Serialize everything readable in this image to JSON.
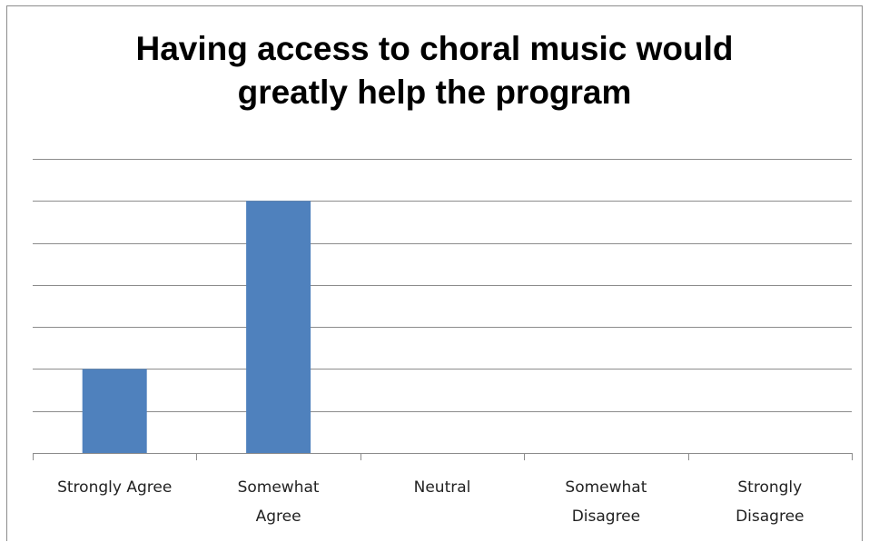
{
  "chart_data": {
    "type": "bar",
    "title": [
      "Having access to choral music would",
      "greatly help the program"
    ],
    "categories": [
      [
        "Strongly Agree"
      ],
      [
        "Somewhat",
        "Agree"
      ],
      [
        "Neutral"
      ],
      [
        "Somewhat",
        "Disagree"
      ],
      [
        "Strongly",
        "Disagree"
      ]
    ],
    "values": [
      2,
      6,
      0,
      0,
      0
    ],
    "ylim": [
      0,
      7
    ],
    "grid": true,
    "bar_color": "#4f81bd",
    "xlabel": "",
    "ylabel": ""
  }
}
